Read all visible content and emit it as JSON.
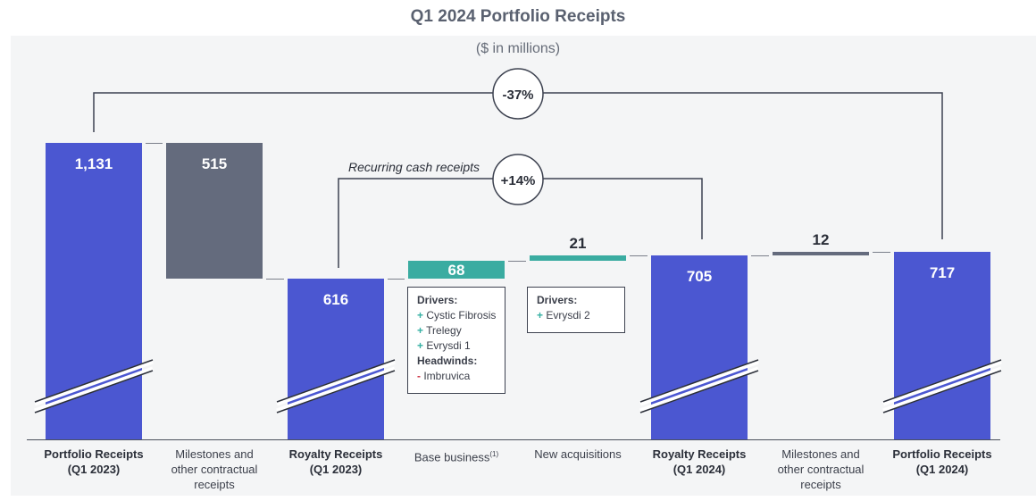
{
  "title": "Q1 2024 Portfolio Receipts",
  "subtitle": "($ in millions)",
  "colors": {
    "blue": "#4b57d1",
    "gray": "#646b7d",
    "teal": "#3aaca1",
    "line": "#3d4250"
  },
  "chart_data": {
    "type": "bar",
    "subtype": "waterfall",
    "title": "Q1 2024 Portfolio Receipts",
    "categories": [
      "Portfolio Receipts (Q1 2023)",
      "Milestones and other contractual receipts",
      "Royalty Receipts (Q1 2023)",
      "Base business(1)",
      "New acquisitions",
      "Royalty Receipts (Q1 2024)",
      "Milestones and other contractual receipts",
      "Portfolio Receipts (Q1 2024)"
    ],
    "bars": [
      {
        "label": "1,131",
        "value": 1131,
        "kind": "total",
        "color": "blue"
      },
      {
        "label": "515",
        "value": 515,
        "kind": "decrease",
        "color": "gray"
      },
      {
        "label": "616",
        "value": 616,
        "kind": "total",
        "color": "blue"
      },
      {
        "label": "68",
        "value": 68,
        "kind": "increase",
        "color": "teal"
      },
      {
        "label": "21",
        "value": 21,
        "kind": "increase",
        "color": "teal"
      },
      {
        "label": "705",
        "value": 705,
        "kind": "total",
        "color": "blue"
      },
      {
        "label": "12",
        "value": 12,
        "kind": "increase",
        "color": "gray"
      },
      {
        "label": "717",
        "value": 717,
        "kind": "total",
        "color": "blue"
      }
    ],
    "axis_break": true,
    "annotations": {
      "overall_change": "-37%",
      "recurring_label": "Recurring cash receipts",
      "recurring_change": "+14%"
    },
    "drivers": [
      {
        "title": "Drivers:",
        "items": [
          {
            "sign": "+",
            "text": "Cystic Fibrosis"
          },
          {
            "sign": "+",
            "text": "Trelegy"
          },
          {
            "sign": "+",
            "text": "Evrysdi 1"
          }
        ],
        "headwinds_title": "Headwinds:",
        "headwinds": [
          {
            "sign": "-",
            "text": "Imbruvica"
          }
        ]
      },
      {
        "title": "Drivers:",
        "items": [
          {
            "sign": "+",
            "text": "Evrysdi 2"
          }
        ]
      }
    ]
  },
  "category_labels": [
    {
      "lines": [
        "Portfolio Receipts",
        "(Q1 2023)"
      ],
      "bold": true
    },
    {
      "lines": [
        "Milestones and",
        "other contractual",
        "receipts"
      ],
      "bold": false
    },
    {
      "lines": [
        "Royalty Receipts",
        "(Q1 2023)"
      ],
      "bold": true
    },
    {
      "lines": [
        "Base business"
      ],
      "sup": "(1)",
      "bold": false
    },
    {
      "lines": [
        "New acquisitions"
      ],
      "bold": false
    },
    {
      "lines": [
        "Royalty Receipts",
        "(Q1 2024)"
      ],
      "bold": true
    },
    {
      "lines": [
        "Milestones and",
        "other contractual",
        "receipts"
      ],
      "bold": false
    },
    {
      "lines": [
        "Portfolio Receipts",
        "(Q1 2024)"
      ],
      "bold": true
    }
  ]
}
